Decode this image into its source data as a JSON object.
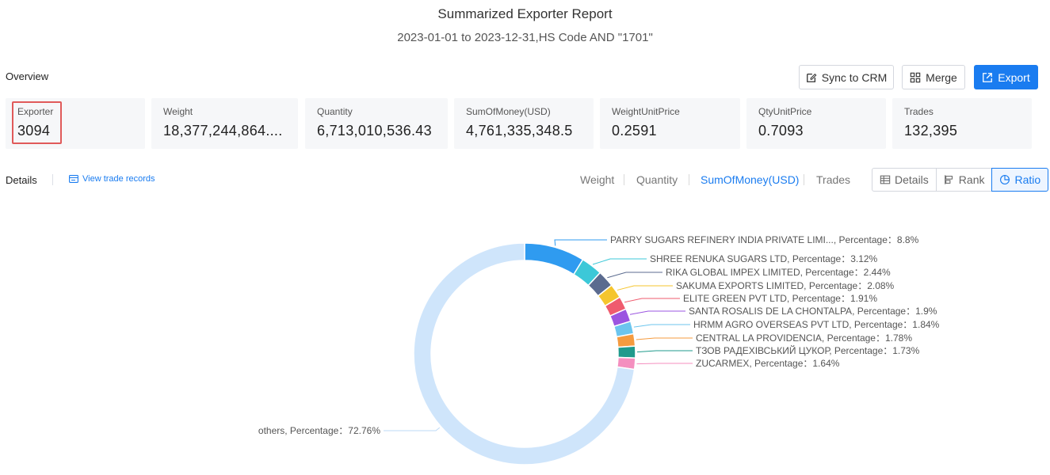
{
  "header": {
    "title": "Summarized Exporter Report",
    "subtitle": "2023-01-01 to 2023-12-31,HS Code AND \"1701\""
  },
  "overview": {
    "label": "Overview",
    "buttons": {
      "sync": "Sync to CRM",
      "merge": "Merge",
      "export": "Export"
    },
    "stats": [
      {
        "label": "Exporter",
        "value": "3094"
      },
      {
        "label": "Weight",
        "value": "18,377,244,864...."
      },
      {
        "label": "Quantity",
        "value": "6,713,010,536.43"
      },
      {
        "label": "SumOfMoney(USD)",
        "value": "4,761,335,348.5"
      },
      {
        "label": "WeightUnitPrice",
        "value": "0.2591"
      },
      {
        "label": "QtyUnitPrice",
        "value": "0.7093"
      },
      {
        "label": "Trades",
        "value": "132,395"
      }
    ]
  },
  "details": {
    "label": "Details",
    "view_link": "View trade records",
    "metric_tabs": [
      "Weight",
      "Quantity",
      "SumOfMoney(USD)",
      "Trades"
    ],
    "active_metric": "SumOfMoney(USD)",
    "view_modes": [
      "Details",
      "Rank",
      "Ratio"
    ],
    "active_view": "Ratio"
  },
  "chart_data": {
    "type": "pie",
    "donut": true,
    "label_separator": ",  Percentage：",
    "slices": [
      {
        "name": "PARRY SUGARS REFINERY INDIA PRIVATE LIMI...",
        "value": 8.8,
        "label": "8.8%",
        "color": "#2f9bf0"
      },
      {
        "name": "SHREE RENUKA SUGARS LTD",
        "value": 3.12,
        "label": "3.12%",
        "color": "#3cc8d8"
      },
      {
        "name": "RIKA GLOBAL IMPEX LIMITED",
        "value": 2.44,
        "label": "2.44%",
        "color": "#5b6b8f"
      },
      {
        "name": "SAKUMA EXPORTS LIMITED",
        "value": 2.08,
        "label": "2.08%",
        "color": "#f5c52e"
      },
      {
        "name": "ELITE GREEN PVT LTD",
        "value": 1.91,
        "label": "1.91%",
        "color": "#ef5b6e"
      },
      {
        "name": "SANTA ROSALIS DE LA CHONTALPA",
        "value": 1.9,
        "label": "1.9%",
        "color": "#9b55e0"
      },
      {
        "name": "HRMM AGRO OVERSEAS PVT LTD",
        "value": 1.84,
        "label": "1.84%",
        "color": "#6cc5ee"
      },
      {
        "name": "CENTRAL LA PROVIDENCIA",
        "value": 1.78,
        "label": "1.78%",
        "color": "#f59b3f"
      },
      {
        "name": "ТЗОВ РАДЕХІВСЬКИЙ ЦУКОР",
        "value": 1.73,
        "label": "1.73%",
        "color": "#1f9a8c"
      },
      {
        "name": "ZUCARMEX",
        "value": 1.64,
        "label": "1.64%",
        "color": "#f48fbf"
      },
      {
        "name": "others",
        "value": 72.76,
        "label": "72.76%",
        "color": "#cfe5fb"
      }
    ]
  }
}
